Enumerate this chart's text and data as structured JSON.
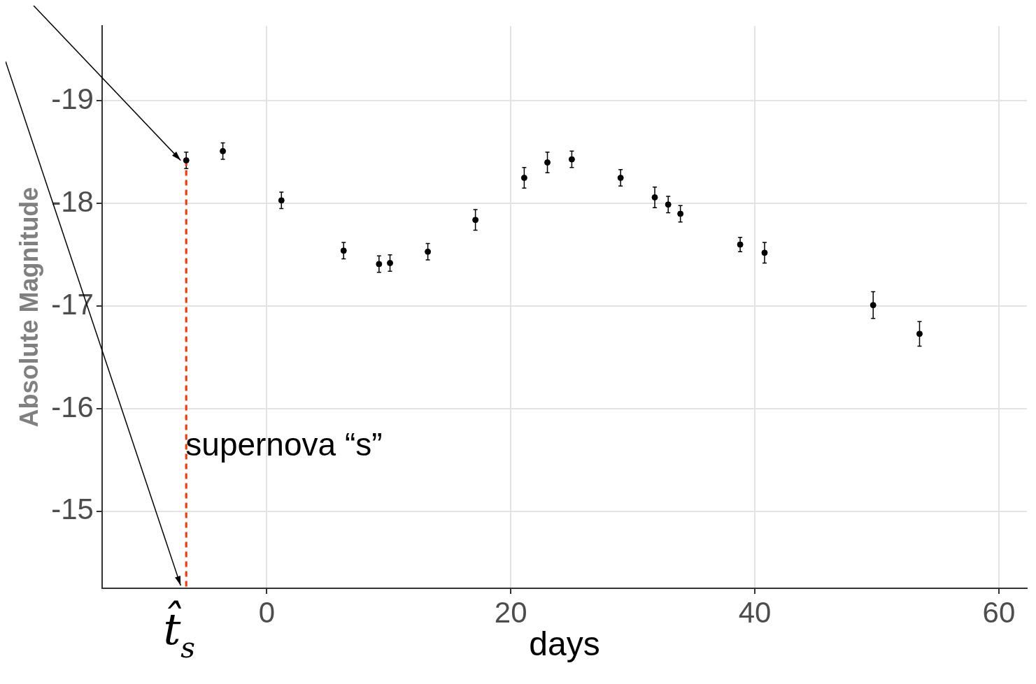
{
  "chart_data": {
    "type": "scatter",
    "xlabel": "days",
    "ylabel": "Absolute Magnitude",
    "x": [
      -6.6,
      -3.6,
      1.2,
      6.3,
      9.2,
      10.1,
      13.2,
      17.1,
      21.1,
      23.0,
      25.0,
      29.0,
      31.8,
      32.9,
      33.9,
      38.8,
      40.8,
      49.7,
      53.5
    ],
    "series": [
      {
        "color": "#000000",
        "values": [
          -18.42,
          -18.51,
          -18.03,
          -17.54,
          -17.41,
          -17.42,
          -17.53,
          -17.84,
          -18.25,
          -18.4,
          -18.43,
          -18.25,
          -18.06,
          -17.99,
          -17.9,
          -17.6,
          -17.52,
          -17.01,
          -16.73
        ],
        "errors": [
          0.08,
          0.08,
          0.08,
          0.08,
          0.08,
          0.08,
          0.08,
          0.1,
          0.1,
          0.1,
          0.08,
          0.08,
          0.1,
          0.08,
          0.08,
          0.07,
          0.1,
          0.13,
          0.12
        ]
      }
    ],
    "xlim": [
      -13.5,
      62.3
    ],
    "xticks": [
      0,
      20,
      40,
      60
    ],
    "ylim": [
      -14.25,
      -19.73
    ],
    "yticks": [
      -19,
      -18,
      -17,
      -16,
      -15
    ],
    "grid": true,
    "legend": false,
    "marker": "circle",
    "ref_lines": [
      {
        "axis": "x",
        "value": -6.6,
        "label": "t̂$_{s}$",
        "color": "#ff3300",
        "line_style": "dashed"
      }
    ],
    "annotations": [
      "supernova “s”"
    ]
  }
}
